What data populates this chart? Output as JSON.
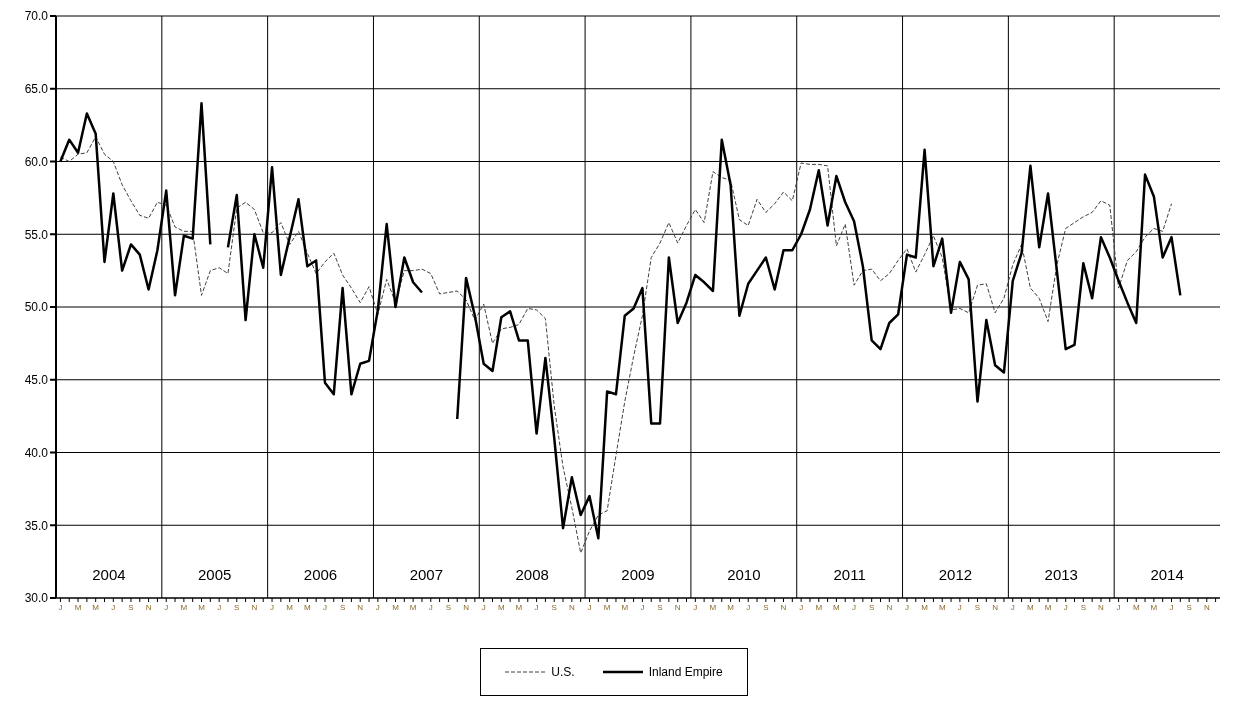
{
  "chart_data": {
    "type": "line",
    "categories": [
      "J",
      null,
      "M",
      null,
      "M",
      null,
      "J",
      null,
      "S",
      null,
      "N",
      null,
      "J",
      null,
      "M",
      null,
      "M",
      null,
      "J",
      null,
      "S",
      null,
      "N",
      null,
      "J",
      null,
      "M",
      null,
      "M",
      null,
      "J",
      null,
      "S",
      null,
      "N",
      null,
      "J",
      null,
      "M",
      null,
      "M",
      null,
      "J",
      null,
      "S",
      null,
      "N",
      null,
      "J",
      null,
      "M",
      null,
      "M",
      null,
      "J",
      null,
      "S",
      null,
      "N",
      null,
      "J",
      null,
      "M",
      null,
      "M",
      null,
      "J",
      null,
      "S",
      null,
      "N",
      null,
      "J",
      null,
      "M",
      null,
      "M",
      null,
      "J",
      null,
      "S",
      null,
      "N",
      null,
      "J",
      null,
      "M",
      null,
      "M",
      null,
      "J",
      null,
      "S",
      null,
      "N",
      null,
      "J",
      null,
      "M",
      null,
      "M",
      null,
      "J",
      null,
      "S",
      null,
      "N",
      null,
      "J",
      null,
      "M",
      null,
      "M",
      null,
      "J",
      null,
      "S",
      null,
      "N",
      null,
      "J",
      null,
      "M",
      null,
      "M",
      null,
      "J",
      null,
      "S",
      null,
      "N",
      null
    ],
    "series": [
      {
        "name": "U.S.",
        "color": "#404040",
        "line_style": "dashed",
        "values": [
          60.3,
          60.0,
          60.5,
          60.6,
          61.7,
          60.5,
          60.0,
          58.4,
          57.3,
          56.3,
          56.1,
          57.2,
          57.0,
          55.5,
          55.2,
          55.2,
          50.8,
          52.5,
          52.7,
          52.3,
          56.8,
          57.2,
          56.7,
          55.1,
          55.1,
          55.8,
          54.3,
          55.2,
          53.7,
          52.3,
          53.1,
          53.7,
          52.2,
          51.3,
          50.3,
          51.4,
          49.5,
          51.9,
          50.3,
          52.5,
          52.5,
          52.6,
          52.3,
          50.9,
          51.0,
          51.1,
          50.5,
          49.1,
          50.2,
          47.5,
          48.5,
          48.6,
          48.8,
          49.9,
          49.8,
          49.2,
          43.2,
          39.0,
          36.2,
          33.1,
          34.6,
          35.7,
          36.0,
          39.8,
          43.5,
          46.6,
          49.4,
          53.4,
          54.4,
          55.8,
          54.4,
          55.6,
          56.7,
          55.8,
          59.3,
          58.9,
          58.7,
          56.0,
          55.6,
          57.4,
          56.5,
          57.1,
          57.9,
          57.3,
          59.9,
          59.8,
          59.8,
          59.7,
          54.2,
          55.7,
          51.5,
          52.5,
          52.6,
          51.8,
          52.3,
          53.2,
          54.0,
          52.4,
          53.6,
          54.9,
          53.4,
          49.8,
          49.9,
          49.6,
          51.5,
          51.6,
          49.6,
          50.6,
          52.9,
          54.3,
          51.3,
          50.6,
          49.0,
          52.9,
          55.4,
          55.8,
          56.2,
          56.5,
          57.3,
          57.0,
          51.3,
          53.2,
          53.8,
          54.8,
          55.4,
          55.2,
          57.1,
          null,
          null,
          null,
          null,
          null
        ]
      },
      {
        "name": "Inland Empire",
        "color": "#000000",
        "line_style": "solid",
        "values": [
          60.0,
          61.5,
          60.6,
          63.3,
          61.9,
          53.1,
          57.8,
          52.5,
          54.3,
          53.6,
          51.2,
          53.9,
          58.0,
          50.8,
          54.9,
          54.7,
          64.0,
          54.3,
          null,
          54.1,
          57.7,
          49.1,
          55.0,
          52.7,
          59.6,
          52.2,
          54.8,
          57.4,
          52.8,
          53.2,
          44.8,
          44.0,
          51.3,
          44.0,
          46.1,
          46.3,
          49.8,
          55.7,
          50.0,
          53.4,
          51.7,
          51.0,
          null,
          null,
          null,
          42.3,
          52.0,
          49.4,
          46.1,
          45.6,
          49.3,
          49.7,
          47.7,
          47.7,
          41.3,
          46.5,
          41.0,
          34.8,
          38.3,
          35.7,
          37.0,
          34.1,
          44.2,
          44.0,
          49.4,
          49.9,
          51.3,
          42.0,
          42.0,
          53.4,
          48.9,
          50.3,
          52.2,
          51.7,
          51.1,
          61.5,
          58.4,
          49.4,
          51.6,
          52.5,
          53.4,
          51.2,
          53.9,
          53.9,
          55.0,
          56.7,
          59.4,
          55.6,
          59.0,
          57.2,
          55.9,
          52.8,
          47.7,
          47.1,
          48.9,
          49.5,
          53.6,
          53.4,
          60.8,
          52.8,
          54.7,
          49.6,
          53.1,
          51.9,
          43.5,
          49.1,
          46.0,
          45.5,
          51.8,
          53.7,
          59.7,
          54.1,
          57.8,
          52.5,
          47.1,
          47.4,
          53.0,
          50.6,
          54.8,
          53.4,
          51.8,
          50.3,
          48.9,
          59.1,
          57.6,
          53.4,
          54.8,
          50.8,
          null,
          null,
          null,
          null
        ]
      }
    ],
    "ylim": [
      30,
      70
    ],
    "yticks": [
      {
        "value": 30,
        "label": "30.0"
      },
      {
        "value": 35,
        "label": "35.0"
      },
      {
        "value": 40,
        "label": "40.0"
      },
      {
        "value": 45,
        "label": "45.0"
      },
      {
        "value": 50,
        "label": "50.0"
      },
      {
        "value": 55,
        "label": "55.0"
      },
      {
        "value": 60,
        "label": "60.0"
      },
      {
        "value": 65,
        "label": "65.0"
      },
      {
        "value": 70,
        "label": "70.0"
      }
    ],
    "annotations": [
      "2004",
      "2005",
      "2006",
      "2007",
      "2008",
      "2009",
      "2010",
      "2011",
      "2012",
      "2013",
      "2014"
    ],
    "grid": true,
    "legend": "bottom"
  }
}
